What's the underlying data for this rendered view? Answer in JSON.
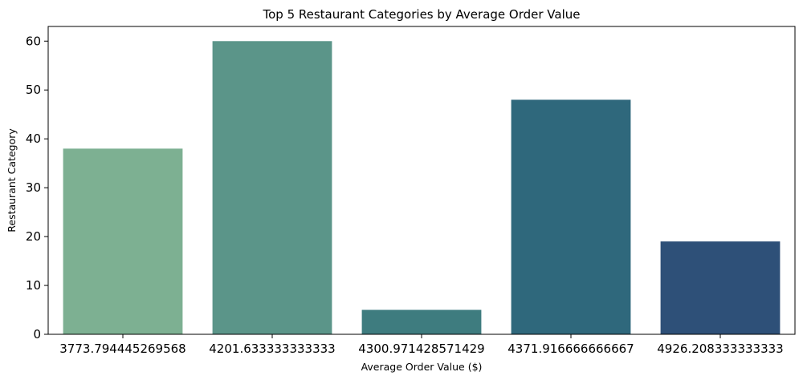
{
  "chart_data": {
    "type": "bar",
    "title": "Top 5 Restaurant Categories by Average Order Value",
    "xlabel": "Average Order Value ($)",
    "ylabel": "Restaurant Category",
    "categories": [
      "3773.794445269568",
      "4201.633333333333",
      "4300.971428571429",
      "4371.916666666667",
      "4926.208333333333"
    ],
    "values": [
      38,
      60,
      5,
      48,
      19
    ],
    "colors": [
      "#7db092",
      "#5b9589",
      "#3e7c7f",
      "#2f687c",
      "#2e5078"
    ],
    "ylim": [
      0,
      63
    ],
    "yticks": [
      0,
      10,
      20,
      30,
      40,
      50,
      60
    ],
    "grid": false,
    "legend": "none"
  }
}
